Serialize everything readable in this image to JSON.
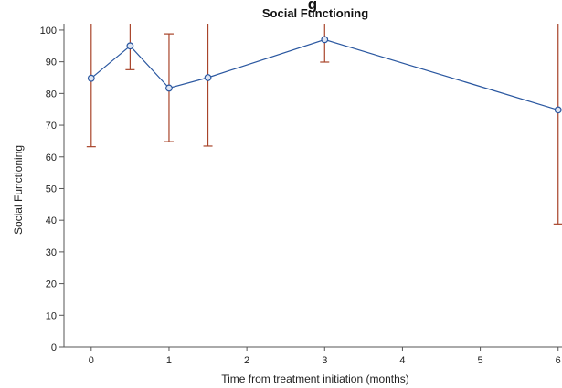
{
  "chart_data": {
    "type": "line",
    "title": "Social Functioning",
    "title_fragment": "g",
    "xlabel": "Time from treatment initiation (months)",
    "ylabel": "Social Functioning",
    "xlim": [
      -0.35,
      6.05
    ],
    "ylim": [
      0,
      102
    ],
    "x_ticks": [
      0,
      1,
      2,
      3,
      4,
      5,
      6
    ],
    "y_ticks": [
      0,
      10,
      20,
      30,
      40,
      50,
      60,
      70,
      80,
      90,
      100
    ],
    "grid": false,
    "series": [
      {
        "x": [
          0,
          0.5,
          1,
          1.5,
          3,
          6
        ],
        "y": [
          84.8,
          95,
          81.7,
          85,
          97,
          74.8
        ],
        "err_low": [
          63.2,
          87.5,
          64.8,
          63.4,
          89.9,
          38.8
        ],
        "err_high": [
          110,
          110,
          98.8,
          110,
          110,
          110
        ],
        "line_color": "#2a57a0",
        "marker_color": "#2a57a0",
        "error_color": "#a8442a"
      }
    ]
  }
}
